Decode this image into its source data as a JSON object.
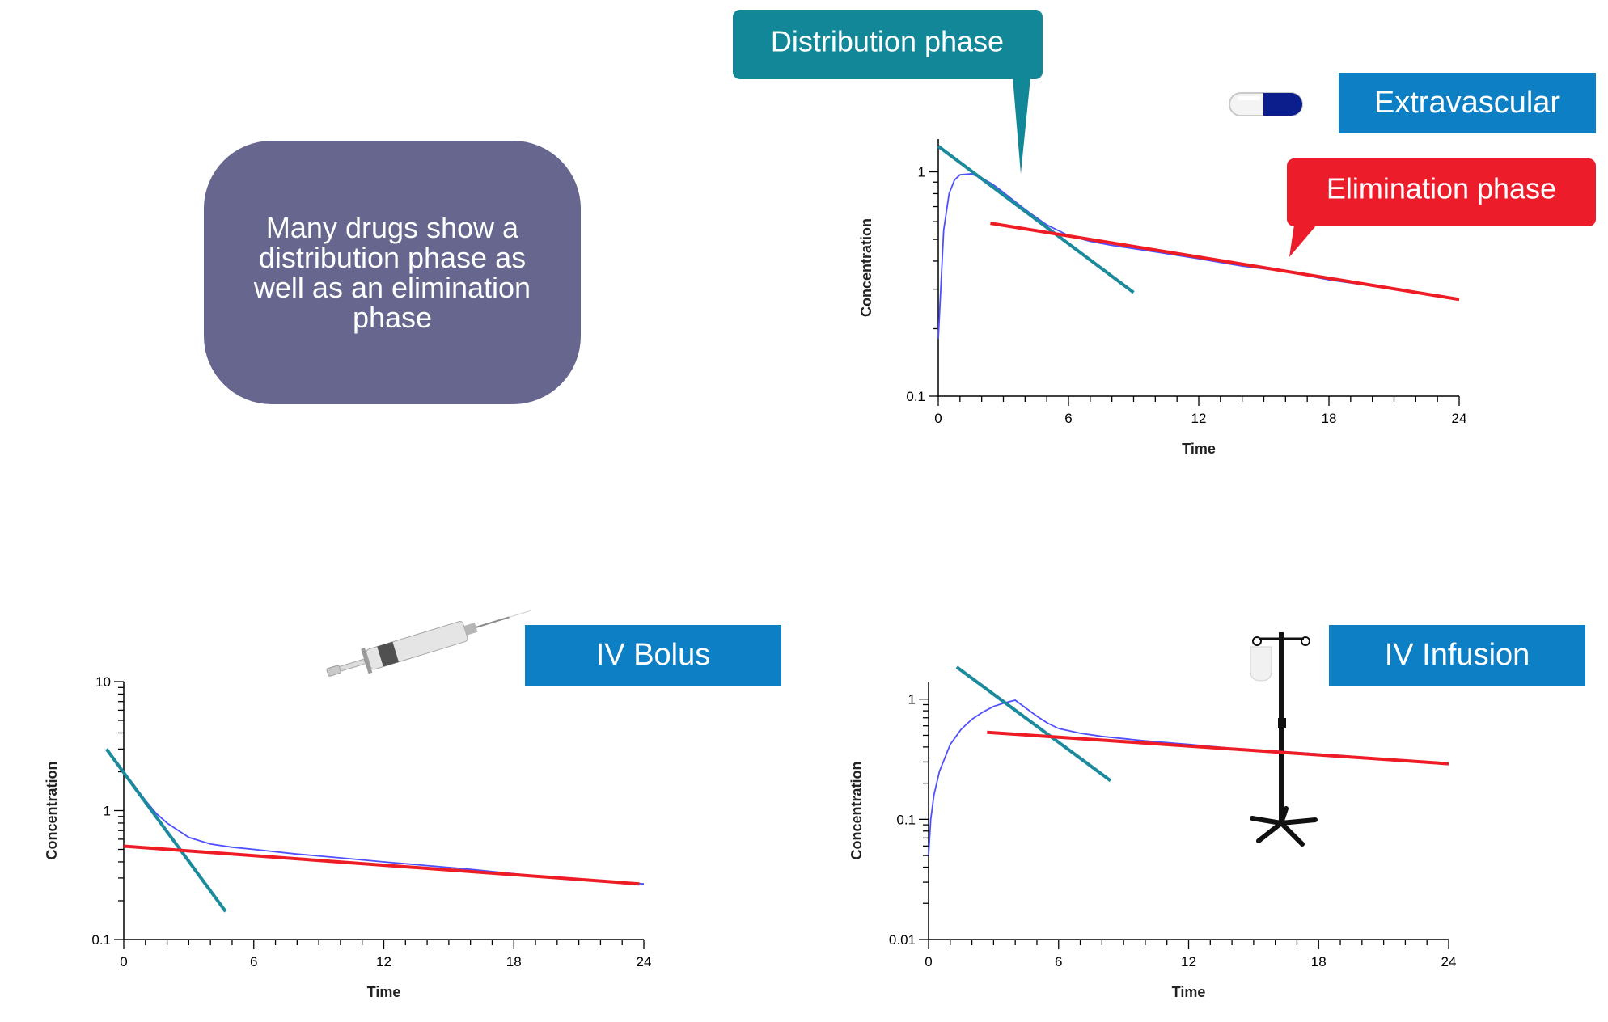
{
  "info_text": "Many drugs show a distribution phase as well as an elimination phase",
  "callouts": {
    "distribution": "Distribution phase",
    "elimination": "Elimination phase"
  },
  "colors": {
    "concentration_curve": "#4f4fff",
    "distribution_line": "#1a8a9c",
    "elimination_line": "#ee1c25",
    "title_box": "#0d7fc4",
    "info_box": "#66668f",
    "distribution_callout": "#118797",
    "elimination_callout": "#ec1c2b"
  },
  "chart_data": [
    {
      "type": "line",
      "title": "Extravascular",
      "xlabel": "Time",
      "ylabel": "Concentration",
      "xlim": [
        0,
        24
      ],
      "ylim": [
        0.1,
        1.4
      ],
      "yscale": "log",
      "xticks": [
        "0",
        "6",
        "12",
        "18",
        "24"
      ],
      "yticks": [
        "0.1",
        "1"
      ],
      "icon": "capsule-icon",
      "series": [
        {
          "x": [
            0,
            0.25,
            0.5,
            0.75,
            1,
            1.5,
            2,
            2.5,
            3,
            4,
            5,
            6,
            7,
            8,
            10,
            12,
            14,
            16,
            18,
            20,
            22,
            24
          ],
          "y": [
            0.18,
            0.55,
            0.8,
            0.92,
            0.97,
            0.98,
            0.94,
            0.88,
            0.81,
            0.68,
            0.58,
            0.52,
            0.49,
            0.47,
            0.44,
            0.41,
            0.38,
            0.36,
            0.33,
            0.31,
            0.29,
            0.27
          ]
        },
        {
          "x": [
            0,
            9
          ],
          "y": [
            1.3,
            0.29
          ]
        },
        {
          "x": [
            2.4,
            24
          ],
          "y": [
            0.59,
            0.27
          ]
        }
      ]
    },
    {
      "type": "line",
      "title": "IV Bolus",
      "xlabel": "Time",
      "ylabel": "Concentration",
      "xlim": [
        0,
        24
      ],
      "ylim": [
        0.1,
        10
      ],
      "yscale": "log",
      "xticks": [
        "0",
        "6",
        "12",
        "18",
        "24"
      ],
      "yticks": [
        "0.1",
        "1",
        "10"
      ],
      "icon": "syringe-icon",
      "series": [
        {
          "x": [
            0,
            0.5,
            1,
            1.5,
            2,
            3,
            4,
            5,
            6,
            8,
            10,
            12,
            16,
            20,
            24
          ],
          "y": [
            2.0,
            1.55,
            1.2,
            0.95,
            0.8,
            0.62,
            0.55,
            0.52,
            0.5,
            0.46,
            0.43,
            0.4,
            0.35,
            0.3,
            0.27
          ]
        },
        {
          "x": [
            -0.8,
            4.7
          ],
          "y": [
            3.0,
            0.165
          ]
        },
        {
          "x": [
            0,
            23.8
          ],
          "y": [
            0.53,
            0.27
          ]
        }
      ]
    },
    {
      "type": "line",
      "title": "IV Infusion",
      "xlabel": "Time",
      "ylabel": "Concentration",
      "xlim": [
        0,
        24
      ],
      "ylim": [
        0.01,
        1.4
      ],
      "yscale": "log",
      "xticks": [
        "0",
        "6",
        "12",
        "18",
        "24"
      ],
      "yticks": [
        "0.01",
        "0.1",
        "1"
      ],
      "icon": "iv-stand-icon",
      "series": [
        {
          "x": [
            0,
            0.1,
            0.25,
            0.5,
            1,
            1.5,
            2,
            2.5,
            3,
            3.5,
            4,
            4.5,
            5,
            5.5,
            6,
            7,
            8,
            10,
            12,
            14,
            16,
            18,
            20,
            22,
            24
          ],
          "y": [
            0.05,
            0.1,
            0.16,
            0.25,
            0.42,
            0.56,
            0.68,
            0.78,
            0.87,
            0.93,
            0.98,
            0.84,
            0.72,
            0.63,
            0.57,
            0.52,
            0.49,
            0.45,
            0.42,
            0.39,
            0.37,
            0.35,
            0.33,
            0.31,
            0.29
          ]
        },
        {
          "x": [
            1.3,
            8.4
          ],
          "y": [
            1.85,
            0.21
          ]
        },
        {
          "x": [
            2.7,
            24
          ],
          "y": [
            0.53,
            0.29
          ]
        }
      ]
    }
  ]
}
